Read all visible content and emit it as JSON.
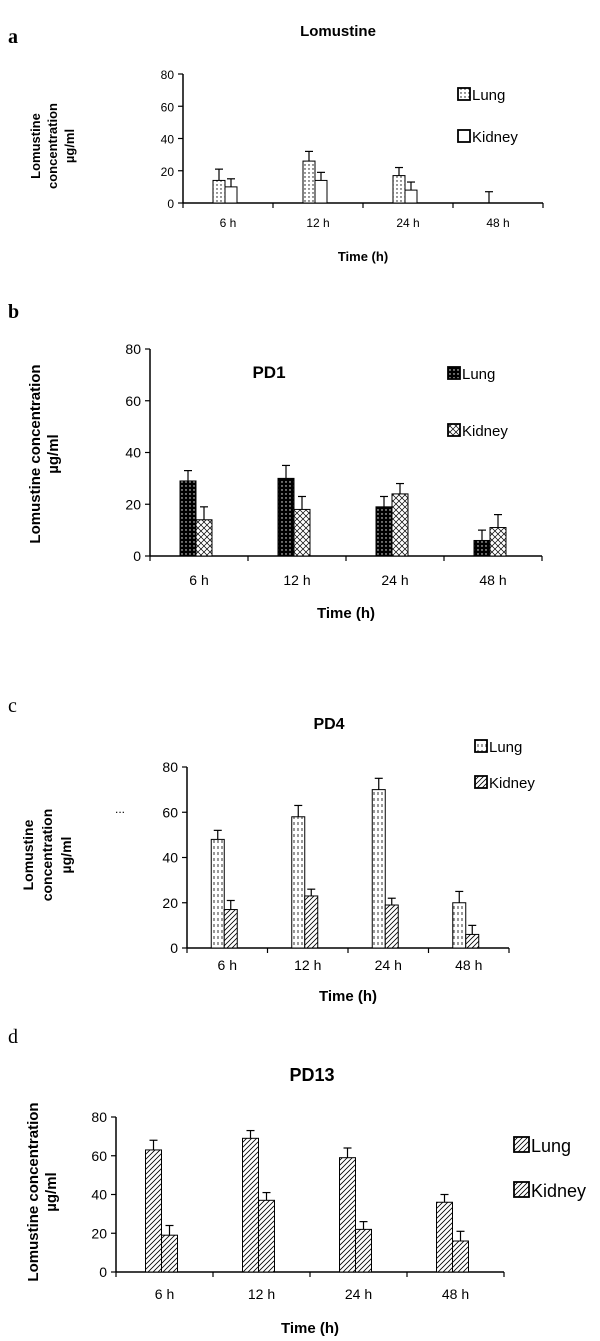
{
  "chart_data": [
    {
      "panel": "a",
      "type": "bar",
      "title": "Lomustine",
      "xlabel": "Time (h)",
      "ylabel_lines": [
        "Lomustine",
        "concentration",
        "µg/ml"
      ],
      "categories": [
        "6 h",
        "12 h",
        "24 h",
        "48 h"
      ],
      "ylim": [
        0,
        80
      ],
      "yticks": [
        0,
        20,
        40,
        60,
        80
      ],
      "series": [
        {
          "name": "Lung",
          "values": [
            14,
            26,
            17,
            0
          ],
          "errors": [
            7,
            6,
            5,
            7
          ],
          "fill": "dots"
        },
        {
          "name": "Kidney",
          "values": [
            10,
            14,
            8,
            0
          ],
          "errors": [
            5,
            5,
            5,
            0
          ],
          "fill": "white"
        }
      ]
    },
    {
      "panel": "b",
      "type": "bar",
      "title": "PD1",
      "xlabel": "Time (h)",
      "ylabel_lines": [
        "Lomustine concentration",
        "µg/ml"
      ],
      "categories": [
        "6 h",
        "12 h",
        "24 h",
        "48 h"
      ],
      "ylim": [
        0,
        80
      ],
      "yticks": [
        0,
        20,
        40,
        60,
        80
      ],
      "series": [
        {
          "name": "Lung",
          "values": [
            29,
            30,
            19,
            6
          ],
          "errors": [
            4,
            5,
            4,
            4
          ],
          "fill": "dark"
        },
        {
          "name": "Kidney",
          "values": [
            14,
            18,
            24,
            11
          ],
          "errors": [
            5,
            5,
            4,
            5
          ],
          "fill": "cross"
        }
      ]
    },
    {
      "panel": "c",
      "type": "bar",
      "title": "PD4",
      "xlabel": "Time (h)",
      "ylabel_lines": [
        "Lomustine",
        "concentration",
        "µg/ml"
      ],
      "side_mark": "...",
      "categories": [
        "6 h",
        "12 h",
        "24 h",
        "48 h"
      ],
      "ylim": [
        0,
        80
      ],
      "yticks": [
        0,
        20,
        40,
        60,
        80
      ],
      "series": [
        {
          "name": "Lung",
          "values": [
            48,
            58,
            70,
            20
          ],
          "errors": [
            4,
            5,
            5,
            5
          ],
          "fill": "dash"
        },
        {
          "name": "Kidney",
          "values": [
            17,
            23,
            19,
            6
          ],
          "errors": [
            4,
            3,
            3,
            4
          ],
          "fill": "hatch"
        }
      ]
    },
    {
      "panel": "d",
      "type": "bar",
      "title": "PD13",
      "xlabel": "Time (h)",
      "ylabel_lines": [
        "Lomustine concentration",
        "µg/ml"
      ],
      "categories": [
        "6 h",
        "12 h",
        "24 h",
        "48 h"
      ],
      "ylim": [
        0,
        80
      ],
      "yticks": [
        0,
        20,
        40,
        60,
        80
      ],
      "series": [
        {
          "name": "Lung",
          "values": [
            63,
            69,
            59,
            36
          ],
          "errors": [
            5,
            4,
            5,
            4
          ],
          "fill": "hatch"
        },
        {
          "name": "Kidney",
          "values": [
            19,
            37,
            22,
            16
          ],
          "errors": [
            5,
            4,
            4,
            5
          ],
          "fill": "hatch"
        }
      ]
    }
  ]
}
